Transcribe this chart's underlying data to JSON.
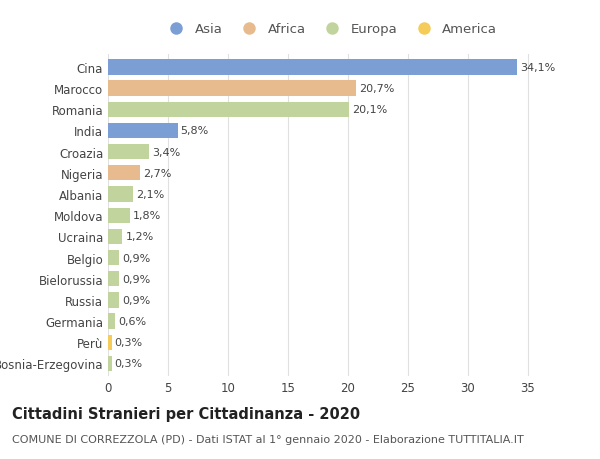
{
  "countries": [
    "Cina",
    "Marocco",
    "Romania",
    "India",
    "Croazia",
    "Nigeria",
    "Albania",
    "Moldova",
    "Ucraina",
    "Belgio",
    "Bielorussia",
    "Russia",
    "Germania",
    "Perù",
    "Bosnia-Erzegovina"
  ],
  "values": [
    34.1,
    20.7,
    20.1,
    5.8,
    3.4,
    2.7,
    2.1,
    1.8,
    1.2,
    0.9,
    0.9,
    0.9,
    0.6,
    0.3,
    0.3
  ],
  "labels": [
    "34,1%",
    "20,7%",
    "20,1%",
    "5,8%",
    "3,4%",
    "2,7%",
    "2,1%",
    "1,8%",
    "1,2%",
    "0,9%",
    "0,9%",
    "0,9%",
    "0,6%",
    "0,3%",
    "0,3%"
  ],
  "continents": [
    "Asia",
    "Africa",
    "Europa",
    "Asia",
    "Europa",
    "Africa",
    "Europa",
    "Europa",
    "Europa",
    "Europa",
    "Europa",
    "Europa",
    "Europa",
    "America",
    "Europa"
  ],
  "colors": {
    "Asia": "#7b9fd4",
    "Africa": "#e8bb8e",
    "Europa": "#c2d49e",
    "America": "#f5cc5a"
  },
  "legend_order": [
    "Asia",
    "Africa",
    "Europa",
    "America"
  ],
  "xlim": [
    0,
    37
  ],
  "xticks": [
    0,
    5,
    10,
    15,
    20,
    25,
    30,
    35
  ],
  "title": "Cittadini Stranieri per Cittadinanza - 2020",
  "subtitle": "COMUNE DI CORREZZOLA (PD) - Dati ISTAT al 1° gennaio 2020 - Elaborazione TUTTITALIA.IT",
  "bg_color": "#ffffff",
  "grid_color": "#e0e0e0",
  "bar_height": 0.72,
  "label_fontsize": 8.0,
  "title_fontsize": 10.5,
  "subtitle_fontsize": 8.0,
  "ytick_fontsize": 8.5,
  "xtick_fontsize": 8.5,
  "legend_fontsize": 9.5
}
